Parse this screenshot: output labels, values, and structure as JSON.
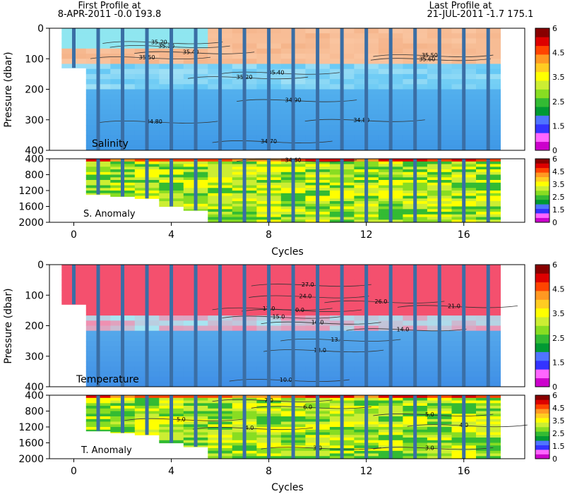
{
  "header": {
    "first_label": "First Profile at",
    "first_value": "8-APR-2011    -0.0  193.8",
    "last_label": "Last Profile at",
    "last_value": "21-JUL-2011    -1.7  175.1"
  },
  "colors": {
    "colorbar": [
      "#cc00cc",
      "#ff66ff",
      "#3333ff",
      "#4f74ff",
      "#009933",
      "#33bb33",
      "#88dd22",
      "#ccee33",
      "#ffff00",
      "#ffcc22",
      "#ff9922",
      "#ff4400",
      "#dd0000",
      "#880000"
    ],
    "profile_line": "#3a6ea5",
    "salinity_fresh": "#66c8f5",
    "salinity_salty": "#f5b48a",
    "temp_warm": "#f4506e",
    "temp_cold": "#3f8fe6"
  },
  "chart_data": [
    {
      "type": "heatmap",
      "name": "salinity-section",
      "label": "Salinity",
      "ylabel": "Pressure (dbar)",
      "ylim": [
        0,
        400
      ],
      "yticks": [
        0,
        100,
        200,
        300,
        400
      ],
      "xlim": [
        -1,
        18.5
      ],
      "contours": [
        {
          "label": "35.20",
          "x": 3.5,
          "y": 45
        },
        {
          "label": "35.30",
          "x": 3.8,
          "y": 58
        },
        {
          "label": "35.40",
          "x": 4.8,
          "y": 78
        },
        {
          "label": "35.50",
          "x": 3.0,
          "y": 95
        },
        {
          "label": "35.20",
          "x": 7.0,
          "y": 160
        },
        {
          "label": "35.40",
          "x": 8.3,
          "y": 145
        },
        {
          "label": "35.60",
          "x": 14.5,
          "y": 100
        },
        {
          "label": "35.50",
          "x": 14.6,
          "y": 88
        },
        {
          "label": "34.90",
          "x": 9.0,
          "y": 235
        },
        {
          "label": "34.80",
          "x": 3.3,
          "y": 305
        },
        {
          "label": "34.80",
          "x": 11.8,
          "y": 300
        },
        {
          "label": "34.70",
          "x": 8.0,
          "y": 370
        }
      ],
      "colorbar_ticks": [
        "6",
        "4.5",
        "3.5",
        "2.5",
        "1.5",
        "0"
      ]
    },
    {
      "type": "heatmap",
      "name": "salinity-anomaly",
      "label": "S. Anomaly",
      "ylim": [
        400,
        2000
      ],
      "yticks": [
        400,
        800,
        1200,
        1600,
        2000
      ],
      "xticks": [
        0,
        4,
        8,
        12,
        16
      ],
      "xlabel": "Cycles",
      "contours": [
        {
          "label": "34.60",
          "x": 9.0,
          "y": 430
        }
      ],
      "colorbar_ticks": [
        "6",
        "4.5",
        "3.5",
        "2.5",
        "1.5",
        "0"
      ]
    },
    {
      "type": "heatmap",
      "name": "temperature-section",
      "label": "Temperature",
      "ylabel": "Pressure (dbar)",
      "ylim": [
        0,
        400
      ],
      "yticks": [
        0,
        100,
        200,
        300,
        400
      ],
      "contours": [
        {
          "label": "27.0",
          "x": 9.6,
          "y": 65
        },
        {
          "label": "24.0",
          "x": 9.5,
          "y": 103
        },
        {
          "label": "26.0",
          "x": 12.6,
          "y": 120
        },
        {
          "label": "21.0",
          "x": 15.6,
          "y": 135
        },
        {
          "label": "17.0",
          "x": 8.0,
          "y": 143
        },
        {
          "label": "20.0",
          "x": 9.2,
          "y": 148
        },
        {
          "label": "15.0",
          "x": 8.4,
          "y": 170
        },
        {
          "label": "16.0",
          "x": 10.0,
          "y": 189
        },
        {
          "label": "14.0",
          "x": 13.5,
          "y": 211
        },
        {
          "label": "13.0",
          "x": 10.8,
          "y": 245
        },
        {
          "label": "12.0",
          "x": 10.1,
          "y": 280
        },
        {
          "label": "10.0",
          "x": 8.7,
          "y": 377
        }
      ],
      "colorbar_ticks": [
        "6",
        "4.5",
        "3.5",
        "2.5",
        "1.5",
        "0"
      ]
    },
    {
      "type": "heatmap",
      "name": "temperature-anomaly",
      "label": "T. Anomaly",
      "ylim": [
        400,
        2000
      ],
      "yticks": [
        400,
        800,
        1200,
        1600,
        2000
      ],
      "xticks": [
        0,
        4,
        8,
        12,
        16
      ],
      "xlabel": "Cycles",
      "contours": [
        {
          "label": "7.0",
          "x": 8.0,
          "y": 520
        },
        {
          "label": "6.0",
          "x": 9.6,
          "y": 690
        },
        {
          "label": "5.0",
          "x": 4.4,
          "y": 1000
        },
        {
          "label": "5.0",
          "x": 14.6,
          "y": 880
        },
        {
          "label": "4.0",
          "x": 7.2,
          "y": 1220
        },
        {
          "label": "4.0",
          "x": 16.0,
          "y": 1150
        },
        {
          "label": "3.0",
          "x": 10.0,
          "y": 1720
        },
        {
          "label": "3.0",
          "x": 14.6,
          "y": 1720
        }
      ],
      "colorbar_ticks": [
        "6",
        "4.5",
        "3.5",
        "2.5",
        "1.5",
        "0"
      ]
    }
  ],
  "profiles": {
    "cycles": [
      0,
      1,
      2,
      3,
      4,
      5,
      6,
      7,
      8,
      9,
      10,
      11,
      12,
      13,
      14,
      15,
      16,
      17
    ],
    "max_pressure": [
      130,
      1300,
      1350,
      1400,
      1600,
      1700,
      2000,
      2000,
      2000,
      2000,
      2000,
      2000,
      2000,
      2000,
      2000,
      2000,
      2000,
      2000
    ]
  }
}
